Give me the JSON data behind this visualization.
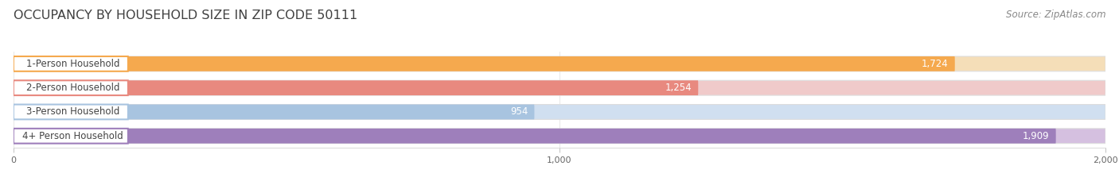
{
  "title": "OCCUPANCY BY HOUSEHOLD SIZE IN ZIP CODE 50111",
  "source": "Source: ZipAtlas.com",
  "categories": [
    "1-Person Household",
    "2-Person Household",
    "3-Person Household",
    "4+ Person Household"
  ],
  "values": [
    1724,
    1254,
    954,
    1909
  ],
  "bar_colors": [
    "#F5A94E",
    "#E8897F",
    "#A8C4E0",
    "#9E7FBB"
  ],
  "bar_bg_colors": [
    "#F5DEB8",
    "#F0CACA",
    "#D0DFF0",
    "#D5C0E0"
  ],
  "label_border_colors": [
    "#F5A94E",
    "#E8897F",
    "#A8C4E0",
    "#9E7FBB"
  ],
  "background_color": "#FFFFFF",
  "xlim": [
    0,
    2000
  ],
  "xticks": [
    0,
    1000,
    2000
  ],
  "xtick_labels": [
    "0",
    "1,000",
    "2,000"
  ],
  "title_fontsize": 11.5,
  "source_fontsize": 8.5,
  "bar_label_fontsize": 8.5,
  "category_fontsize": 8.5,
  "value_outside_color": "#555555",
  "value_inside_color": "#FFFFFF"
}
